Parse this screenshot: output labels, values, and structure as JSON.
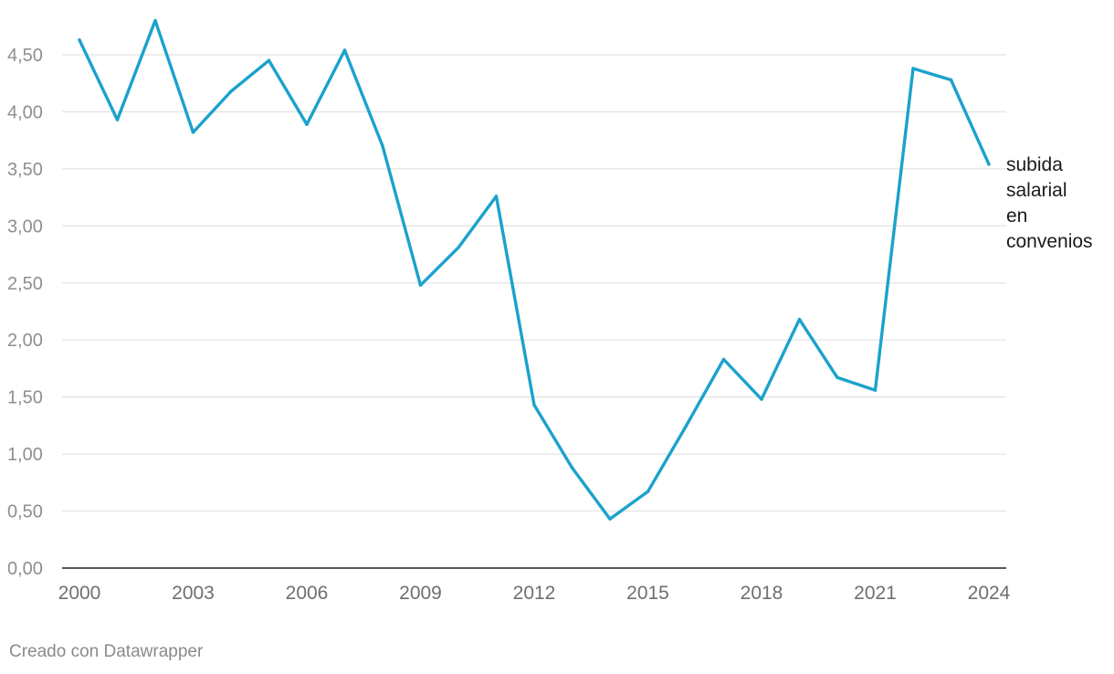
{
  "chart_data": {
    "type": "line",
    "title": "",
    "xlabel": "",
    "ylabel": "",
    "x_ticks": [
      "2000",
      "2003",
      "2006",
      "2009",
      "2012",
      "2015",
      "2018",
      "2021",
      "2024"
    ],
    "y_ticks": [
      "0,00",
      "0,50",
      "1,00",
      "1,50",
      "2,00",
      "2,50",
      "3,00",
      "3,50",
      "4,00",
      "4,50"
    ],
    "ylim": [
      0,
      4.8
    ],
    "xlim": [
      2000,
      2024
    ],
    "grid": true,
    "series": [
      {
        "name": "subida salarial en convenios",
        "label_lines": [
          "subida",
          "salarial",
          "en",
          "convenios"
        ],
        "color": "#1ba2cc",
        "x": [
          2000,
          2001,
          2002,
          2003,
          2004,
          2005,
          2006,
          2007,
          2008,
          2009,
          2010,
          2011,
          2012,
          2013,
          2014,
          2015,
          2016,
          2017,
          2018,
          2019,
          2020,
          2021,
          2022,
          2023,
          2024
        ],
        "values": [
          4.63,
          3.93,
          4.8,
          3.82,
          4.18,
          4.45,
          3.89,
          4.54,
          3.7,
          2.48,
          2.81,
          3.26,
          1.43,
          0.88,
          0.43,
          0.67,
          1.24,
          1.83,
          1.48,
          2.18,
          1.67,
          1.56,
          4.38,
          4.28,
          3.54
        ]
      }
    ]
  },
  "footer": {
    "credit": "Creado con Datawrapper"
  }
}
